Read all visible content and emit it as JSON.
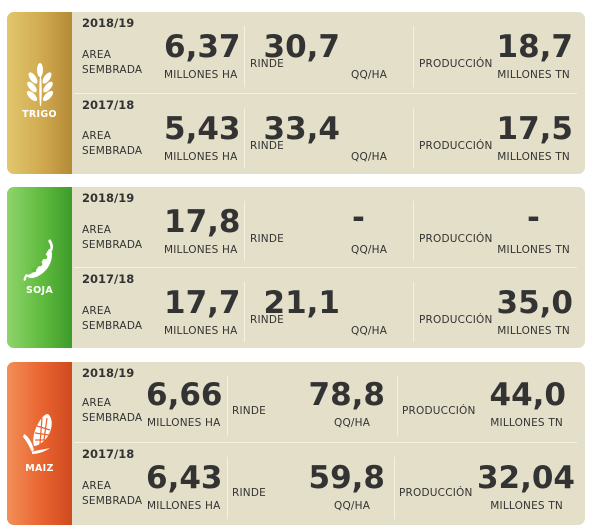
{
  "labels": {
    "area_line1": "AREA",
    "area_line2": "SEMBRADA",
    "rinde": "RINDE",
    "produccion": "PRODUCCIÓN"
  },
  "colors": {
    "card_bg": "#e3dfc9",
    "trigo": "#cfa94f",
    "soja": "#5fba3e",
    "maiz": "#e8632f",
    "text": "#2f2f2f"
  },
  "crops": [
    {
      "name": "TRIGO",
      "icon": "wheat-icon",
      "rows": [
        {
          "year": "2018/19",
          "area": "6,37",
          "area_unit": "MILLONES HA",
          "rinde": "30,7",
          "rinde_unit": "QQ/HA",
          "produccion": "18,7",
          "produccion_unit": "MILLONES TN"
        },
        {
          "year": "2017/18",
          "area": "5,43",
          "area_unit": "MILLONES HA",
          "rinde": "33,4",
          "rinde_unit": "QQ/HA",
          "produccion": "17,5",
          "produccion_unit": "MILLONES TN"
        }
      ]
    },
    {
      "name": "SOJA",
      "icon": "soybean-icon",
      "rows": [
        {
          "year": "2018/19",
          "area": "17,8",
          "area_unit": "MILLONES HA",
          "rinde": "-",
          "rinde_unit": "QQ/HA",
          "produccion": "-",
          "produccion_unit": "MILLONES TN"
        },
        {
          "year": "2017/18",
          "area": "17,7",
          "area_unit": "MILLONES HA",
          "rinde": "21,1",
          "rinde_unit": "QQ/HA",
          "produccion": "35,0",
          "produccion_unit": "MILLONES TN"
        }
      ]
    },
    {
      "name": "MAIZ",
      "icon": "corn-icon",
      "rows": [
        {
          "year": "2018/19",
          "area": "6,66",
          "area_unit": "MILLONES HA",
          "rinde": "78,8",
          "rinde_unit": "QQ/HA",
          "produccion": "44,0",
          "produccion_unit": "MILLONES TN"
        },
        {
          "year": "2017/18",
          "area": "6,43",
          "area_unit": "MILLONES HA",
          "rinde": "59,8",
          "rinde_unit": "QQ/HA",
          "produccion": "32,04",
          "produccion_unit": "MILLONES TN"
        }
      ]
    }
  ]
}
